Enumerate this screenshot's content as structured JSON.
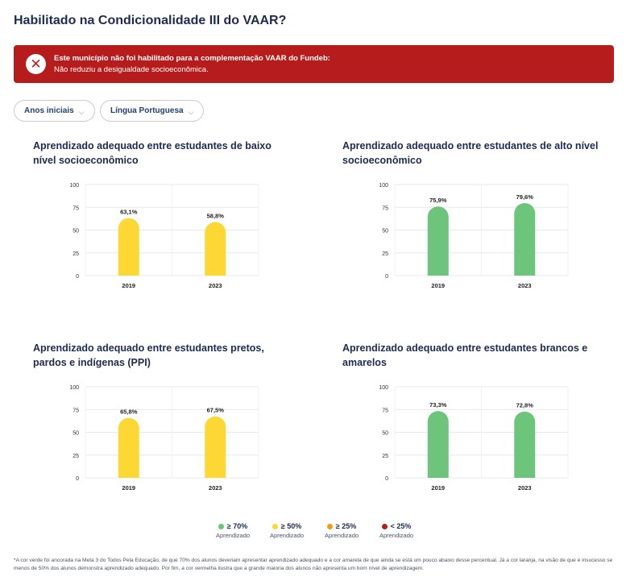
{
  "page": {
    "title": "Habilitado na Condicionalidade III do VAAR?"
  },
  "alert": {
    "icon": "close-icon",
    "title": "Este município não foi habilitado para a complementação VAAR do Fundeb:",
    "message": "Não reduziu a desigualdade socioeconômica.",
    "color": "#b71c1c"
  },
  "filters": [
    {
      "label": "Anos iniciais",
      "icon": "chevron-down-icon"
    },
    {
      "label": "Língua Portuguesa",
      "icon": "chevron-down-icon"
    }
  ],
  "colors": {
    "green": "#6cc57a",
    "yellow": "#fdd835",
    "orange": "#f39c12",
    "red": "#b71c1c"
  },
  "chart_data": [
    {
      "type": "bar",
      "title": "Aprendizado adequado entre estudantes de baixo nível socioeconômico",
      "categories": [
        "2019",
        "2023"
      ],
      "values": [
        63.1,
        58.8
      ],
      "labels": [
        "63,1%",
        "58,8%"
      ],
      "bar_colors": [
        "#fdd835",
        "#fdd835"
      ],
      "yticks": [
        "100",
        "75",
        "50",
        "25",
        "0"
      ],
      "ylim": [
        0,
        100
      ],
      "grid": true
    },
    {
      "type": "bar",
      "title": "Aprendizado adequado entre estudantes de alto nível socioeconômico",
      "categories": [
        "2019",
        "2023"
      ],
      "values": [
        75.9,
        79.6
      ],
      "labels": [
        "75,9%",
        "79,6%"
      ],
      "bar_colors": [
        "#6cc57a",
        "#6cc57a"
      ],
      "yticks": [
        "100",
        "75",
        "50",
        "25",
        "0"
      ],
      "ylim": [
        0,
        100
      ],
      "grid": true
    },
    {
      "type": "bar",
      "title": "Aprendizado adequado entre estudantes pretos, pardos e indígenas (PPI)",
      "categories": [
        "2019",
        "2023"
      ],
      "values": [
        65.8,
        67.5
      ],
      "labels": [
        "65,8%",
        "67,5%"
      ],
      "bar_colors": [
        "#fdd835",
        "#fdd835"
      ],
      "yticks": [
        "100",
        "75",
        "50",
        "25",
        "0"
      ],
      "ylim": [
        0,
        100
      ],
      "grid": true
    },
    {
      "type": "bar",
      "title": "Aprendizado adequado entre estudantes brancos e amarelos",
      "categories": [
        "2019",
        "2023"
      ],
      "values": [
        73.3,
        72.8
      ],
      "labels": [
        "73,3%",
        "72,8%"
      ],
      "bar_colors": [
        "#6cc57a",
        "#6cc57a"
      ],
      "yticks": [
        "100",
        "75",
        "50",
        "25",
        "0"
      ],
      "ylim": [
        0,
        100
      ],
      "grid": true
    }
  ],
  "legend": [
    {
      "label": "≥ 70%",
      "sub": "Aprendizado",
      "color": "#6cc57a"
    },
    {
      "label": "≥ 50%",
      "sub": "Aprendizado",
      "color": "#fdd835"
    },
    {
      "label": "≥ 25%",
      "sub": "Aprendizado",
      "color": "#f39c12"
    },
    {
      "label": "< 25%",
      "sub": "Aprendizado",
      "color": "#b71c1c"
    }
  ],
  "footnote": "*A cor verde foi ancorada na Meta 3 do Todos Pela Educação, de que 70% dos alunos deveriam apresentar aprendizado adequado e a cor amarela de que ainda se está um pouco abaixo desse percentual. Já a cor laranja, na visão de que é insucesso se menos de 50% dos alunos demonstra aprendizado adequado. Por fim, a cor vermelha ilustra que a grande maioria dos alunos não apresenta um bom nível de aprendizagem."
}
